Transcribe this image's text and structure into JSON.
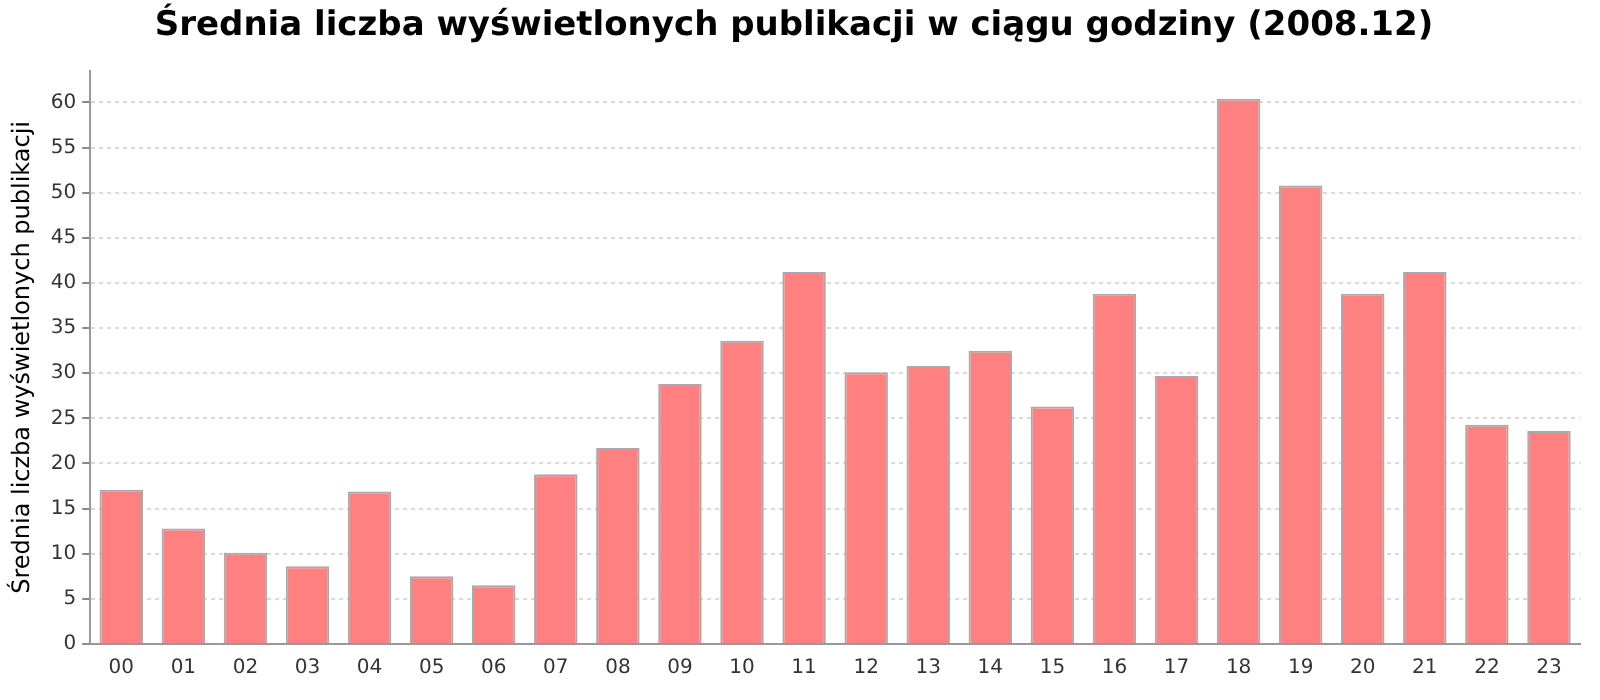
{
  "chart_data": {
    "type": "bar",
    "title": "Średnia liczba wyświetlonych publikacji w ciągu godziny (2008.12)",
    "ylabel": "Średnia liczba wyświetlonych publikacji",
    "categories": [
      "00",
      "01",
      "02",
      "03",
      "04",
      "05",
      "06",
      "07",
      "08",
      "09",
      "10",
      "11",
      "12",
      "13",
      "14",
      "15",
      "16",
      "17",
      "18",
      "19",
      "20",
      "21",
      "22",
      "23"
    ],
    "values": [
      17.1,
      12.8,
      10.1,
      8.6,
      16.9,
      7.5,
      6.5,
      18.8,
      21.7,
      28.8,
      33.6,
      41.2,
      30.1,
      30.8,
      32.5,
      26.3,
      38.8,
      29.7,
      60.4,
      50.8,
      38.8,
      41.2,
      24.3,
      23.6
    ],
    "color": "#ff8080",
    "ylim": [
      0,
      63.5
    ],
    "yticks": [
      0,
      5,
      10,
      15,
      20,
      25,
      30,
      35,
      40,
      45,
      50,
      55,
      60
    ],
    "grid": "y",
    "legend": false
  }
}
